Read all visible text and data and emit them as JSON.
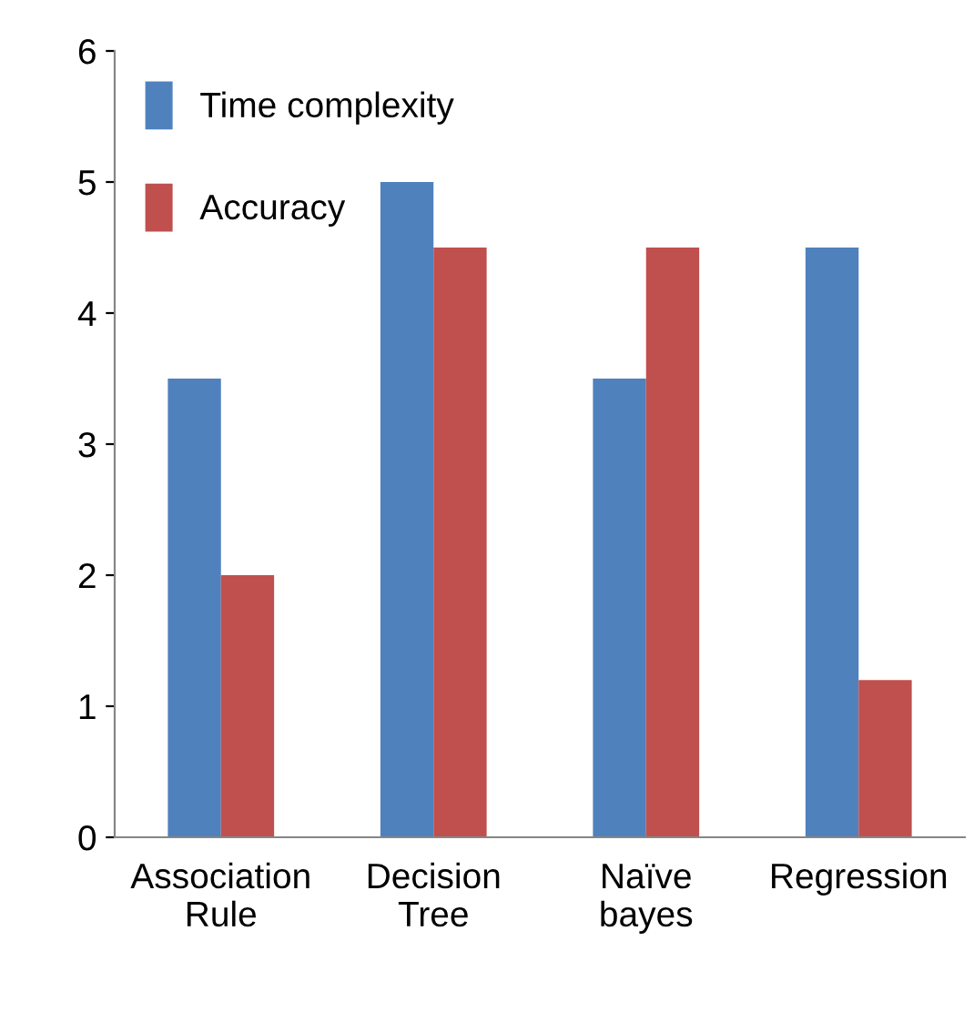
{
  "chart_data": {
    "type": "bar",
    "categories": [
      "Association\nRule",
      "Decision\nTree",
      "Naïve\nbayes",
      "Regression"
    ],
    "series": [
      {
        "name": "Time complexity",
        "color": "#4f81bd",
        "values": [
          3.5,
          5,
          3.5,
          4.5
        ]
      },
      {
        "name": "Accuracy",
        "color": "#c0504d",
        "values": [
          2,
          4.5,
          4.5,
          1.2
        ]
      }
    ],
    "ylim": [
      0,
      6
    ],
    "yticks": [
      0,
      1,
      2,
      3,
      4,
      5,
      6
    ],
    "grid": false,
    "legend": "top left"
  }
}
